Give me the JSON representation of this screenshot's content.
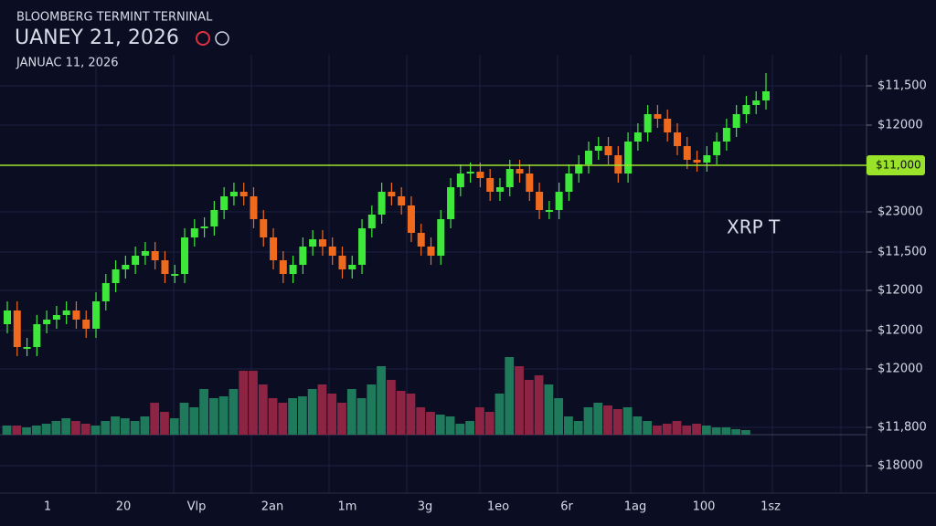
{
  "chart_data": {
    "type": "candlestick",
    "header": "BLOOMBERG TERMINT TERNINAL",
    "title": "UANEY 21, 2026",
    "subtitle": "JANUAC 11, 2026",
    "annotation": "XRP T",
    "ylim": [
      0,
      420
    ],
    "volume_lim": [
      0,
      100
    ],
    "up_color": "#3ee83a",
    "down_color": "#f06a1e",
    "volume_up_color": "#1f7a5c",
    "volume_down_color": "#8e2444",
    "grid": true,
    "open": [
      125,
      140,
      100,
      100,
      125,
      130,
      135,
      140,
      130,
      120,
      150,
      170,
      185,
      190,
      200,
      205,
      195,
      180,
      180,
      220,
      230,
      232,
      250,
      265,
      270,
      265,
      240,
      220,
      195,
      180,
      190,
      210,
      218,
      210,
      200,
      185,
      190,
      230,
      245,
      270,
      265,
      255,
      225,
      210,
      200,
      240,
      275,
      290,
      292,
      285,
      270,
      275,
      295,
      290,
      270,
      250,
      250,
      270,
      290,
      300,
      315,
      320,
      310,
      290,
      325,
      335,
      355,
      350,
      335,
      320,
      305,
      302,
      310,
      325,
      340,
      355,
      365,
      370
    ],
    "high": [
      150,
      150,
      110,
      135,
      140,
      145,
      150,
      150,
      140,
      160,
      180,
      195,
      200,
      210,
      215,
      215,
      205,
      190,
      230,
      240,
      242,
      260,
      275,
      280,
      280,
      275,
      250,
      230,
      205,
      200,
      220,
      228,
      228,
      220,
      210,
      200,
      240,
      255,
      280,
      280,
      275,
      265,
      235,
      220,
      250,
      285,
      300,
      302,
      302,
      295,
      285,
      305,
      305,
      300,
      280,
      260,
      280,
      300,
      310,
      325,
      330,
      330,
      320,
      335,
      345,
      365,
      365,
      360,
      345,
      330,
      315,
      320,
      335,
      350,
      365,
      375,
      380,
      400
    ],
    "low": [
      115,
      90,
      90,
      90,
      115,
      120,
      125,
      120,
      110,
      110,
      140,
      160,
      175,
      180,
      190,
      185,
      170,
      170,
      170,
      210,
      220,
      222,
      240,
      255,
      255,
      230,
      210,
      185,
      170,
      170,
      180,
      200,
      200,
      190,
      175,
      175,
      180,
      220,
      235,
      255,
      245,
      215,
      200,
      190,
      190,
      230,
      265,
      280,
      275,
      260,
      260,
      265,
      280,
      260,
      240,
      240,
      240,
      260,
      280,
      290,
      305,
      300,
      280,
      280,
      315,
      325,
      340,
      325,
      310,
      295,
      292,
      292,
      300,
      315,
      330,
      345,
      355,
      360
    ],
    "close": [
      140,
      100,
      100,
      125,
      130,
      135,
      140,
      130,
      120,
      150,
      170,
      185,
      190,
      200,
      205,
      195,
      180,
      180,
      220,
      230,
      232,
      250,
      265,
      270,
      265,
      240,
      220,
      195,
      180,
      190,
      210,
      218,
      210,
      200,
      185,
      190,
      230,
      245,
      270,
      265,
      255,
      225,
      210,
      200,
      240,
      275,
      290,
      292,
      285,
      270,
      275,
      295,
      290,
      270,
      250,
      250,
      270,
      290,
      300,
      315,
      320,
      310,
      290,
      325,
      335,
      355,
      350,
      335,
      320,
      305,
      302,
      310,
      325,
      340,
      355,
      365,
      370,
      380
    ],
    "volume": [
      10,
      10,
      8,
      10,
      12,
      15,
      18,
      15,
      12,
      10,
      15,
      20,
      18,
      15,
      20,
      35,
      25,
      18,
      35,
      30,
      50,
      40,
      42,
      50,
      70,
      70,
      55,
      40,
      35,
      40,
      42,
      50,
      55,
      45,
      35,
      50,
      40,
      55,
      75,
      60,
      48,
      45,
      30,
      25,
      22,
      20,
      12,
      15,
      30,
      25,
      45,
      85,
      75,
      60,
      65,
      55,
      40,
      20,
      15,
      30,
      35,
      32,
      28,
      30,
      20,
      15,
      10,
      12,
      15,
      10,
      12,
      10,
      8,
      8,
      6,
      5,
      0,
      0
    ],
    "level": 299,
    "level_label": "$11,000",
    "level_color": "#9be22a",
    "price_labels": [
      "$11,500",
      "$12000",
      "$23000",
      "$11,500",
      "$12000",
      "$12000",
      "$12000",
      "$11,800",
      "$18000"
    ],
    "x_labels": [
      "1",
      "20",
      "Vlp",
      "2an",
      "1m",
      "3g",
      "1eo",
      "6r",
      "1ag",
      "100",
      "1sz"
    ]
  }
}
